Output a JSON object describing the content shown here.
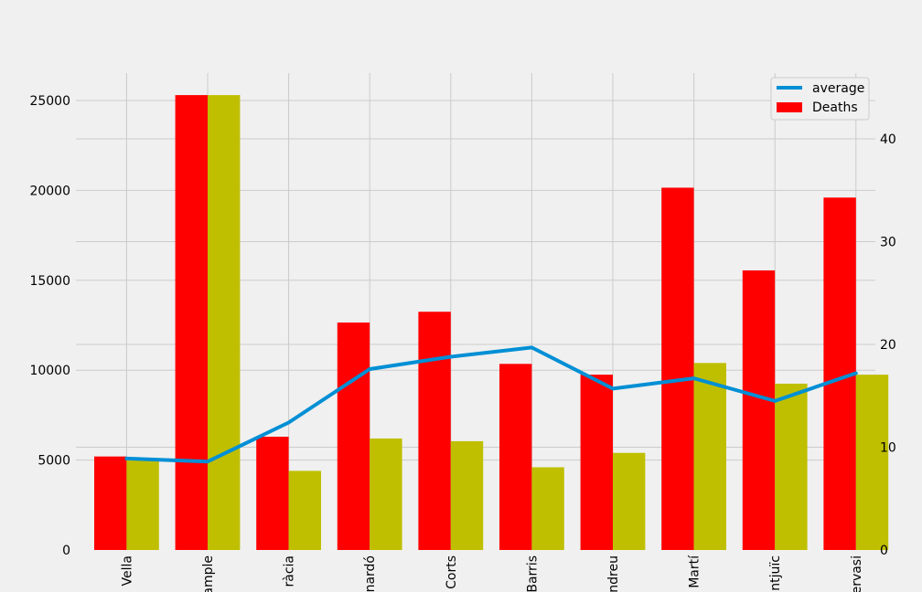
{
  "chart_data": {
    "type": "bar",
    "categories": [
      "Ciutat Vella",
      "Eixample",
      "Gràcia",
      "Horta-Guinardó",
      "Les Corts",
      "Nou Barris",
      "Sant Andreu",
      "Sant Martí",
      "Sants-Montjuïc",
      "Sarrià-Sant Gervasi"
    ],
    "tick_labels_visible": [
      "Vella",
      "ample",
      "ràcia",
      "nardó",
      "Corts",
      "Barris",
      "ndreu",
      "Martí",
      "ntjuïc",
      "ervasi"
    ],
    "series": [
      {
        "name": "Deaths",
        "axis": "left",
        "color": "#ff0000",
        "values": [
          5200,
          25300,
          6300,
          12650,
          13250,
          10350,
          9750,
          20150,
          15550,
          19600
        ]
      },
      {
        "name": "",
        "axis": "left",
        "color": "#bfbf00",
        "values": [
          5000,
          25300,
          4400,
          6200,
          6050,
          4600,
          5400,
          10400,
          9250,
          9750
        ]
      },
      {
        "name": "average",
        "type": "line",
        "axis": "right",
        "color": "#008fd5",
        "values": [
          8.9,
          8.6,
          12.4,
          17.6,
          18.8,
          19.7,
          15.7,
          16.7,
          14.5,
          17.2
        ]
      }
    ],
    "left_axis": {
      "ylim": [
        0,
        26500
      ],
      "ticks": [
        0,
        5000,
        10000,
        15000,
        20000,
        25000
      ]
    },
    "right_axis": {
      "ylim": [
        0,
        46
      ],
      "ticks": [
        0,
        10,
        20,
        30,
        40
      ]
    },
    "title": "",
    "xlabel": "",
    "ylabel": "",
    "grid": true,
    "legend": {
      "position": "top-right",
      "entries": [
        "average",
        "Deaths"
      ]
    }
  },
  "colors": {
    "background": "#f0f0f0",
    "grid": "#cbcbcb"
  }
}
